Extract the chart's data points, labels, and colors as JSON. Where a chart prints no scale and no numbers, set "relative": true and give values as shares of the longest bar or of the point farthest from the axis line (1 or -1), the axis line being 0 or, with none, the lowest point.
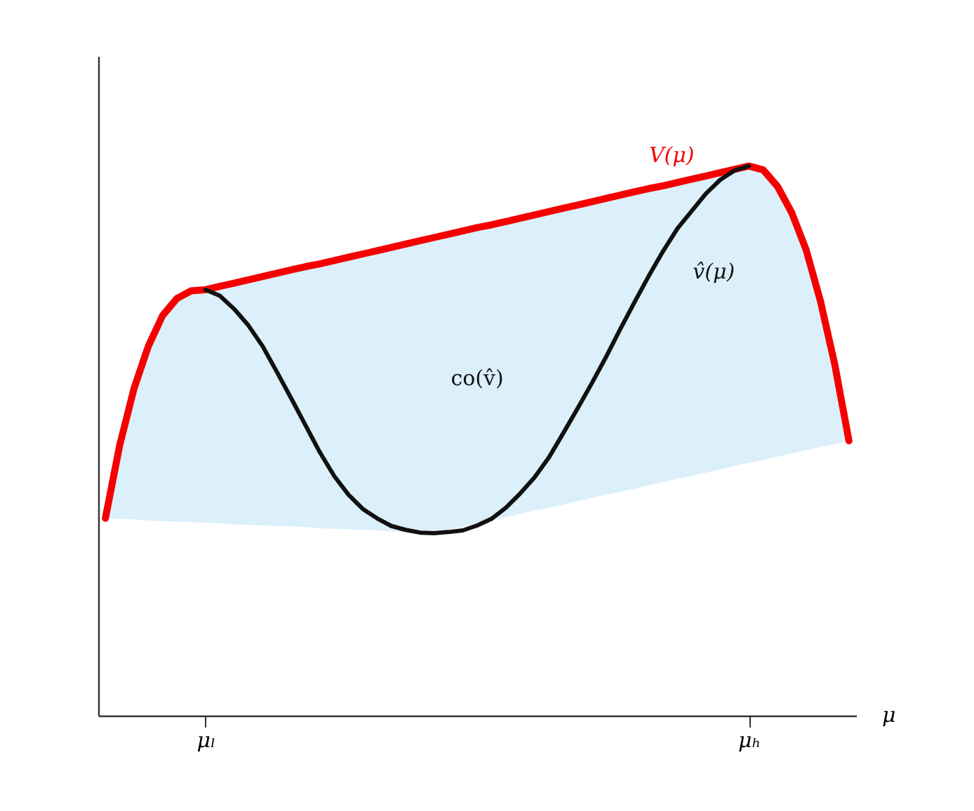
{
  "chart_data": {
    "type": "line",
    "relative": true,
    "xlabel": "μ",
    "annotations": [
      "co(v̂)"
    ],
    "categories": [
      null,
      null,
      null,
      null,
      null,
      null,
      null,
      "μₗ",
      null,
      null,
      null,
      null,
      null,
      null,
      null,
      null,
      null,
      null,
      null,
      null,
      null,
      null,
      null,
      null,
      null,
      null,
      null,
      null,
      null,
      null,
      null,
      null,
      null,
      null,
      null,
      null,
      null,
      null,
      null,
      null,
      null,
      null,
      null,
      null,
      null,
      "μₕ",
      null,
      null,
      null,
      null,
      null,
      null,
      null
    ],
    "series": [
      {
        "name": "V(μ)",
        "color": "#f40000",
        "values": [
          0.359,
          0.492,
          0.595,
          0.672,
          0.728,
          0.759,
          0.773,
          0.775,
          0.781,
          0.787,
          0.793,
          0.799,
          0.805,
          0.811,
          0.817,
          0.822,
          0.828,
          0.834,
          0.84,
          0.846,
          0.852,
          0.858,
          0.864,
          0.87,
          0.876,
          0.882,
          0.888,
          0.893,
          0.899,
          0.905,
          0.911,
          0.917,
          0.923,
          0.929,
          0.935,
          0.941,
          0.947,
          0.953,
          0.959,
          0.964,
          0.97,
          0.976,
          0.982,
          0.988,
          0.994,
          1,
          0.993,
          0.963,
          0.915,
          0.848,
          0.755,
          0.64,
          0.5
        ],
        "upper": [
          0.359,
          0.492,
          0.595,
          0.672,
          0.728,
          0.759,
          0.773,
          0.775,
          0.781,
          0.787,
          0.793,
          0.799,
          0.805,
          0.811,
          0.817,
          0.822,
          0.828,
          0.834,
          0.84,
          0.846,
          0.852,
          0.858,
          0.864,
          0.87,
          0.876,
          0.882,
          0.888,
          0.893,
          0.899,
          0.905,
          0.911,
          0.917,
          0.923,
          0.929,
          0.935,
          0.941,
          0.947,
          0.953,
          0.959,
          0.964,
          0.97,
          0.976,
          0.982,
          0.988,
          0.994,
          1,
          0.993,
          0.963,
          0.915,
          0.848,
          0.755,
          0.64,
          0.5
        ],
        "lower": [
          0.359,
          0.358,
          0.357,
          0.355,
          0.354,
          0.353,
          0.352,
          0.351,
          0.35,
          0.348,
          0.347,
          0.346,
          0.345,
          0.344,
          0.343,
          0.341,
          0.34,
          0.339,
          0.338,
          0.337,
          0.335,
          0.334,
          0.333,
          0.332,
          0.338,
          0.344,
          0.349,
          0.355,
          0.361,
          0.367,
          0.373,
          0.378,
          0.384,
          0.39,
          0.396,
          0.402,
          0.407,
          0.413,
          0.419,
          0.425,
          0.431,
          0.436,
          0.442,
          0.448,
          0.454,
          0.46,
          0.465,
          0.471,
          0.477,
          0.483,
          0.489,
          0.494,
          0.5
        ]
      },
      {
        "name": "v̂(μ)",
        "color": "#111111",
        "values": [
          null,
          null,
          null,
          null,
          null,
          null,
          null,
          0.775,
          0.764,
          0.74,
          0.71,
          0.672,
          0.625,
          0.577,
          0.528,
          0.479,
          0.436,
          0.402,
          0.376,
          0.359,
          0.345,
          0.338,
          0.333,
          0.332,
          0.334,
          0.337,
          0.346,
          0.358,
          0.378,
          0.404,
          0.433,
          0.469,
          0.513,
          0.558,
          0.604,
          0.652,
          0.703,
          0.752,
          0.8,
          0.845,
          0.886,
          0.918,
          0.95,
          0.975,
          0.992,
          1,
          null,
          null,
          null,
          null,
          null,
          null,
          null
        ]
      }
    ]
  }
}
